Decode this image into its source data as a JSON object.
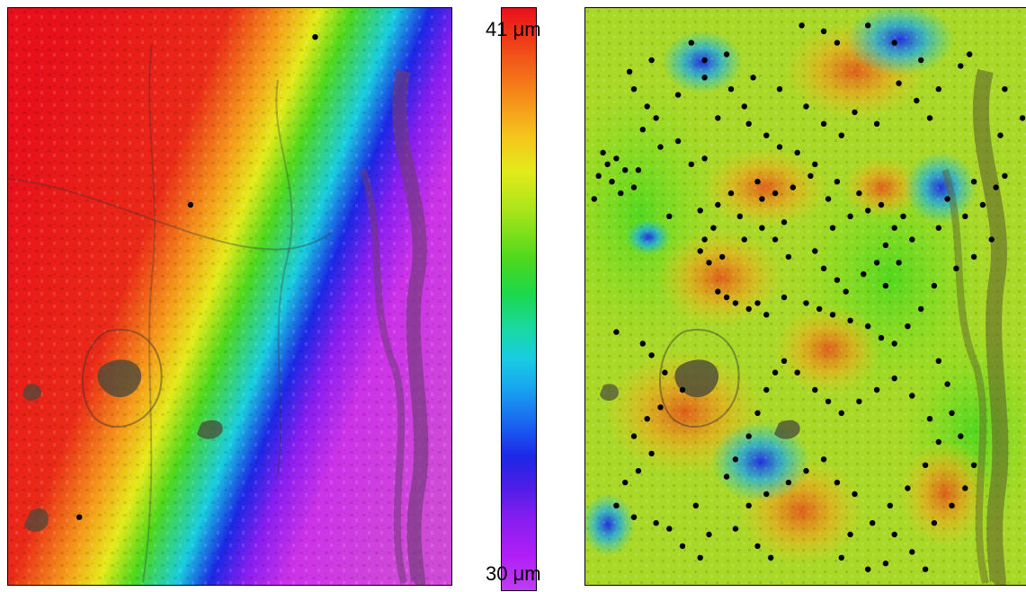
{
  "colorbar": {
    "max_label": "41 μm",
    "min_label": "30 μm",
    "max_value": 41,
    "min_value": 30,
    "unit": "μm",
    "colors": [
      "#e8101a",
      "#f5821a",
      "#e4ea1a",
      "#4ed81c",
      "#19cde0",
      "#1c28e6",
      "#8a1ef0",
      "#c03cf6"
    ]
  },
  "maps": [
    {
      "id": "left",
      "style": "smooth linear gradient field (red west to magenta east) over aerial imagery"
    },
    {
      "id": "right",
      "style": "interpolated patchy field with station points over aerial imagery"
    }
  ],
  "left_points": [
    [
      0.69,
      0.05
    ],
    [
      0.41,
      0.34
    ],
    [
      0.16,
      0.88
    ]
  ],
  "right_points": [
    [
      0.24,
      0.06
    ],
    [
      0.27,
      0.09
    ],
    [
      0.32,
      0.08
    ],
    [
      0.27,
      0.12
    ],
    [
      0.49,
      0.03
    ],
    [
      0.54,
      0.04
    ],
    [
      0.57,
      0.06
    ],
    [
      0.64,
      0.03
    ],
    [
      0.7,
      0.06
    ],
    [
      0.76,
      0.09
    ],
    [
      0.71,
      0.13
    ],
    [
      0.04,
      0.25
    ],
    [
      0.05,
      0.27
    ],
    [
      0.07,
      0.26
    ],
    [
      0.09,
      0.28
    ],
    [
      0.06,
      0.3
    ],
    [
      0.03,
      0.29
    ],
    [
      0.08,
      0.32
    ],
    [
      0.11,
      0.31
    ],
    [
      0.12,
      0.28
    ],
    [
      0.02,
      0.33
    ],
    [
      0.13,
      0.21
    ],
    [
      0.16,
      0.19
    ],
    [
      0.17,
      0.24
    ],
    [
      0.21,
      0.23
    ],
    [
      0.24,
      0.27
    ],
    [
      0.27,
      0.26
    ],
    [
      0.37,
      0.2
    ],
    [
      0.41,
      0.22
    ],
    [
      0.44,
      0.24
    ],
    [
      0.48,
      0.25
    ],
    [
      0.52,
      0.27
    ],
    [
      0.51,
      0.29
    ],
    [
      0.47,
      0.31
    ],
    [
      0.43,
      0.32
    ],
    [
      0.4,
      0.33
    ],
    [
      0.39,
      0.3
    ],
    [
      0.33,
      0.32
    ],
    [
      0.3,
      0.34
    ],
    [
      0.26,
      0.35
    ],
    [
      0.19,
      0.36
    ],
    [
      0.55,
      0.33
    ],
    [
      0.57,
      0.3
    ],
    [
      0.62,
      0.32
    ],
    [
      0.64,
      0.35
    ],
    [
      0.67,
      0.34
    ],
    [
      0.6,
      0.36
    ],
    [
      0.56,
      0.38
    ],
    [
      0.45,
      0.37
    ],
    [
      0.4,
      0.38
    ],
    [
      0.35,
      0.36
    ],
    [
      0.29,
      0.38
    ],
    [
      0.27,
      0.4
    ],
    [
      0.26,
      0.42
    ],
    [
      0.28,
      0.44
    ],
    [
      0.31,
      0.43
    ],
    [
      0.36,
      0.4
    ],
    [
      0.43,
      0.4
    ],
    [
      0.46,
      0.43
    ],
    [
      0.52,
      0.42
    ],
    [
      0.54,
      0.45
    ],
    [
      0.57,
      0.47
    ],
    [
      0.59,
      0.49
    ],
    [
      0.63,
      0.46
    ],
    [
      0.66,
      0.44
    ],
    [
      0.68,
      0.41
    ],
    [
      0.7,
      0.38
    ],
    [
      0.72,
      0.36
    ],
    [
      0.74,
      0.4
    ],
    [
      0.71,
      0.44
    ],
    [
      0.68,
      0.48
    ],
    [
      0.3,
      0.49
    ],
    [
      0.32,
      0.5
    ],
    [
      0.34,
      0.51
    ],
    [
      0.37,
      0.52
    ],
    [
      0.39,
      0.51
    ],
    [
      0.41,
      0.53
    ],
    [
      0.45,
      0.5
    ],
    [
      0.5,
      0.51
    ],
    [
      0.53,
      0.52
    ],
    [
      0.56,
      0.53
    ],
    [
      0.6,
      0.54
    ],
    [
      0.64,
      0.55
    ],
    [
      0.67,
      0.57
    ],
    [
      0.7,
      0.58
    ],
    [
      0.73,
      0.55
    ],
    [
      0.76,
      0.52
    ],
    [
      0.79,
      0.48
    ],
    [
      0.84,
      0.45
    ],
    [
      0.88,
      0.43
    ],
    [
      0.92,
      0.4
    ],
    [
      0.86,
      0.36
    ],
    [
      0.9,
      0.34
    ],
    [
      0.93,
      0.31
    ],
    [
      0.95,
      0.29
    ],
    [
      0.88,
      0.3
    ],
    [
      0.82,
      0.33
    ],
    [
      0.8,
      0.38
    ],
    [
      0.94,
      0.22
    ],
    [
      0.99,
      0.19
    ],
    [
      0.95,
      0.14
    ],
    [
      0.85,
      0.1
    ],
    [
      0.87,
      0.08
    ],
    [
      0.8,
      0.14
    ],
    [
      0.75,
      0.16
    ],
    [
      0.78,
      0.19
    ],
    [
      0.66,
      0.2
    ],
    [
      0.61,
      0.18
    ],
    [
      0.58,
      0.22
    ],
    [
      0.54,
      0.2
    ],
    [
      0.5,
      0.17
    ],
    [
      0.44,
      0.14
    ],
    [
      0.38,
      0.12
    ],
    [
      0.33,
      0.14
    ],
    [
      0.36,
      0.17
    ],
    [
      0.3,
      0.19
    ],
    [
      0.21,
      0.15
    ],
    [
      0.14,
      0.17
    ],
    [
      0.11,
      0.14
    ],
    [
      0.1,
      0.11
    ],
    [
      0.15,
      0.09
    ],
    [
      0.07,
      0.56
    ],
    [
      0.13,
      0.58
    ],
    [
      0.15,
      0.6
    ],
    [
      0.18,
      0.63
    ],
    [
      0.22,
      0.66
    ],
    [
      0.17,
      0.69
    ],
    [
      0.14,
      0.71
    ],
    [
      0.11,
      0.74
    ],
    [
      0.15,
      0.77
    ],
    [
      0.12,
      0.8
    ],
    [
      0.09,
      0.82
    ],
    [
      0.07,
      0.86
    ],
    [
      0.11,
      0.88
    ],
    [
      0.16,
      0.89
    ],
    [
      0.19,
      0.9
    ],
    [
      0.22,
      0.93
    ],
    [
      0.26,
      0.95
    ],
    [
      0.28,
      0.91
    ],
    [
      0.25,
      0.86
    ],
    [
      0.32,
      0.81
    ],
    [
      0.34,
      0.78
    ],
    [
      0.37,
      0.74
    ],
    [
      0.39,
      0.7
    ],
    [
      0.41,
      0.66
    ],
    [
      0.43,
      0.63
    ],
    [
      0.45,
      0.61
    ],
    [
      0.48,
      0.63
    ],
    [
      0.52,
      0.66
    ],
    [
      0.55,
      0.68
    ],
    [
      0.58,
      0.7
    ],
    [
      0.62,
      0.68
    ],
    [
      0.66,
      0.66
    ],
    [
      0.7,
      0.64
    ],
    [
      0.74,
      0.67
    ],
    [
      0.78,
      0.71
    ],
    [
      0.8,
      0.75
    ],
    [
      0.77,
      0.79
    ],
    [
      0.73,
      0.83
    ],
    [
      0.69,
      0.86
    ],
    [
      0.65,
      0.89
    ],
    [
      0.6,
      0.91
    ],
    [
      0.58,
      0.95
    ],
    [
      0.79,
      0.89
    ],
    [
      0.83,
      0.86
    ],
    [
      0.86,
      0.83
    ],
    [
      0.88,
      0.79
    ],
    [
      0.85,
      0.74
    ],
    [
      0.83,
      0.7
    ],
    [
      0.82,
      0.65
    ],
    [
      0.8,
      0.61
    ],
    [
      0.37,
      0.86
    ],
    [
      0.41,
      0.84
    ],
    [
      0.46,
      0.82
    ],
    [
      0.5,
      0.8
    ],
    [
      0.54,
      0.78
    ],
    [
      0.57,
      0.82
    ],
    [
      0.61,
      0.84
    ],
    [
      0.34,
      0.9
    ],
    [
      0.39,
      0.93
    ],
    [
      0.42,
      0.95
    ],
    [
      0.7,
      0.91
    ],
    [
      0.74,
      0.94
    ],
    [
      0.77,
      0.97
    ],
    [
      0.68,
      0.96
    ],
    [
      0.64,
      0.97
    ]
  ]
}
